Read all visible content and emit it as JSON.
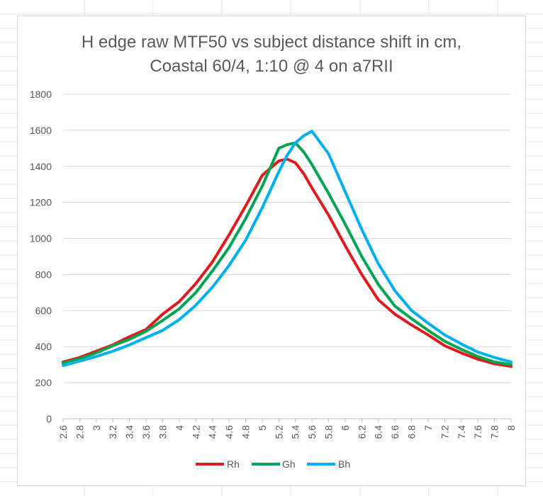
{
  "chart_data": {
    "type": "line",
    "title_lines": [
      "H edge raw MTF50 vs subject distance shift in cm,",
      "Coastal 60/4, 1:10 @ 4 on a7RII"
    ],
    "xlabel": "",
    "ylabel": "",
    "xlim": [
      2.6,
      8
    ],
    "ylim": [
      0,
      1800
    ],
    "x_ticks": [
      "2.6",
      "2.8",
      "3",
      "3.2",
      "3.4",
      "3.6",
      "3.8",
      "4",
      "4.2",
      "4.4",
      "4.6",
      "4.8",
      "5",
      "5.2",
      "5.4",
      "5.6",
      "5.8",
      "6",
      "6.2",
      "6.4",
      "6.6",
      "6.8",
      "7",
      "7.2",
      "7.4",
      "7.6",
      "7.8",
      "8"
    ],
    "y_ticks": [
      "0",
      "200",
      "400",
      "600",
      "800",
      "1000",
      "1200",
      "1400",
      "1600",
      "1800"
    ],
    "grid": "horizontal",
    "legend_position": "bottom",
    "x": [
      2.6,
      2.8,
      3.0,
      3.2,
      3.4,
      3.6,
      3.8,
      4.0,
      4.2,
      4.4,
      4.6,
      4.8,
      5.0,
      5.2,
      5.3,
      5.4,
      5.5,
      5.6,
      5.8,
      6.0,
      6.2,
      6.4,
      6.6,
      6.8,
      7.0,
      7.2,
      7.4,
      7.6,
      7.8,
      8.0
    ],
    "series": [
      {
        "name": "Rh",
        "color": "#e31a1c",
        "values": [
          315,
          340,
          375,
          410,
          455,
          495,
          580,
          650,
          750,
          870,
          1020,
          1180,
          1350,
          1430,
          1440,
          1420,
          1360,
          1280,
          1130,
          960,
          800,
          660,
          580,
          520,
          465,
          405,
          365,
          330,
          305,
          290
        ]
      },
      {
        "name": "Gh",
        "color": "#00a651",
        "values": [
          308,
          333,
          365,
          405,
          440,
          485,
          545,
          610,
          700,
          820,
          950,
          1110,
          1290,
          1500,
          1520,
          1530,
          1480,
          1410,
          1250,
          1080,
          900,
          745,
          625,
          555,
          490,
          430,
          385,
          345,
          315,
          300
        ]
      },
      {
        "name": "Bh",
        "color": "#00b0f0",
        "values": [
          295,
          320,
          345,
          375,
          410,
          450,
          490,
          550,
          630,
          730,
          850,
          990,
          1170,
          1370,
          1460,
          1530,
          1570,
          1595,
          1470,
          1260,
          1050,
          860,
          710,
          600,
          530,
          465,
          415,
          370,
          340,
          315
        ]
      }
    ]
  }
}
